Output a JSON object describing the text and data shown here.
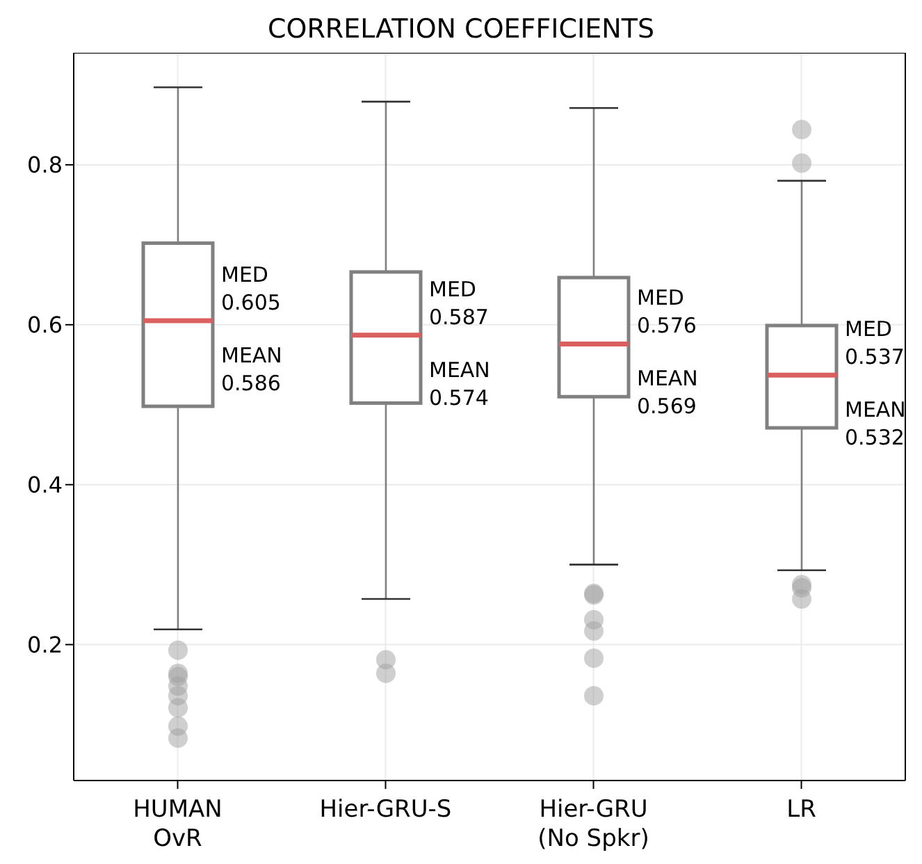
{
  "chart_data": {
    "type": "box",
    "title": "CORRELATION COEFFICIENTS",
    "categories": [
      "HUMAN\nOvR",
      "Hier-GRU-S",
      "Hier-GRU\n(No Spkr)",
      "LR"
    ],
    "series": [
      {
        "color": "#808080",
        "boxes": [
          {
            "low": 0.219,
            "q1": 0.498,
            "median": 0.605,
            "q3": 0.702,
            "high": 0.897,
            "outliers": [
              0.193,
              0.164,
              0.16,
              0.148,
              0.136,
              0.121,
              0.098,
              0.083
            ]
          },
          {
            "low": 0.257,
            "q1": 0.502,
            "median": 0.587,
            "q3": 0.666,
            "high": 0.879,
            "outliers": [
              0.181,
              0.164
            ]
          },
          {
            "low": 0.3,
            "q1": 0.51,
            "median": 0.576,
            "q3": 0.659,
            "high": 0.871,
            "outliers": [
              0.264,
              0.262,
              0.231,
              0.217,
              0.183,
              0.136
            ]
          },
          {
            "low": 0.293,
            "q1": 0.471,
            "median": 0.537,
            "q3": 0.599,
            "high": 0.78,
            "outliers": [
              0.844,
              0.802,
              0.275,
              0.271,
              0.257
            ]
          }
        ]
      }
    ],
    "annotations": [
      {
        "text": "MED\n0.605",
        "x": "HUMAN\nOvR",
        "y": 0.605
      },
      "MEAN\n0.586",
      {
        "text": "MED\n0.587",
        "x": "Hier-GRU-S",
        "y": 0.587
      },
      "MEAN\n0.574",
      {
        "text": "MED\n0.576",
        "x": "Hier-GRU\n(No Spkr)",
        "y": 0.576
      },
      "MEAN\n0.569",
      {
        "text": "MED\n0.537",
        "x": "LR",
        "y": 0.537
      },
      "MEAN\n0.532"
    ],
    "ylim": [
      0.03,
      0.94
    ],
    "yticks": [
      0.2,
      0.4,
      0.6,
      0.8
    ],
    "grid": true
  }
}
